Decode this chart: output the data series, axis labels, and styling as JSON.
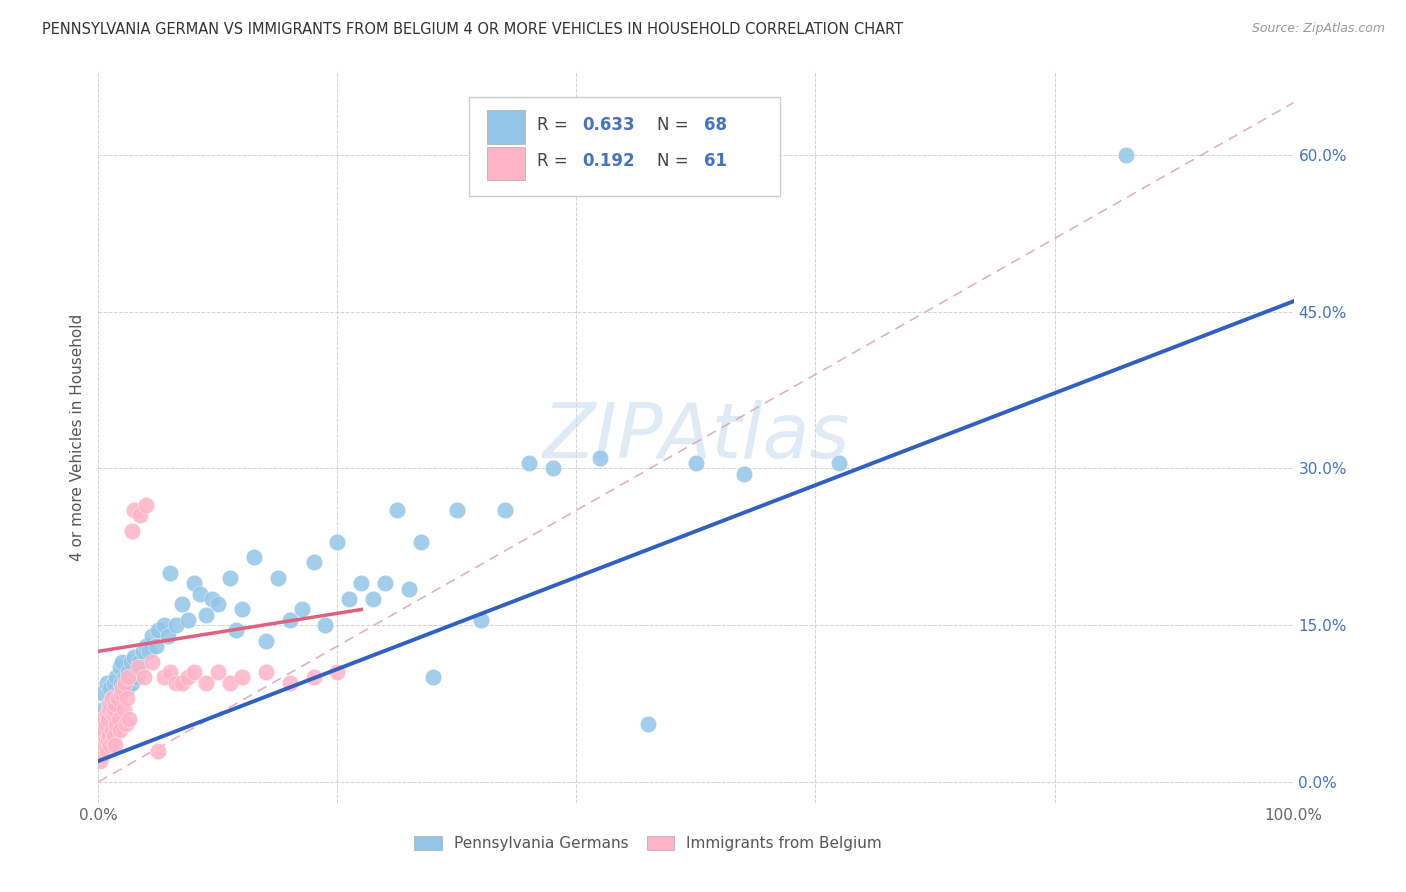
{
  "title": "PENNSYLVANIA GERMAN VS IMMIGRANTS FROM BELGIUM 4 OR MORE VEHICLES IN HOUSEHOLD CORRELATION CHART",
  "source": "Source: ZipAtlas.com",
  "ylabel": "4 or more Vehicles in Household",
  "xmin": 0.0,
  "xmax": 1.0,
  "ymin": -0.02,
  "ymax": 0.68,
  "x_ticks": [
    0.0,
    0.2,
    0.4,
    0.6,
    0.8,
    1.0
  ],
  "x_tick_labels": [
    "0.0%",
    "",
    "",
    "",
    "",
    "100.0%"
  ],
  "y_ticks": [
    0.0,
    0.15,
    0.3,
    0.45,
    0.6
  ],
  "y_tick_labels": [
    "0.0%",
    "15.0%",
    "30.0%",
    "45.0%",
    "60.0%"
  ],
  "R1": 0.633,
  "N1": 68,
  "R2": 0.192,
  "N2": 61,
  "color_blue": "#92C5E8",
  "color_pink": "#FFB3C6",
  "color_blue_line": "#3060C0",
  "color_pink_line": "#E06080",
  "color_diag": "#D0A0A8",
  "watermark_color": "#C8DCF0",
  "blue_points_x": [
    0.003,
    0.005,
    0.007,
    0.009,
    0.01,
    0.012,
    0.013,
    0.015,
    0.016,
    0.018,
    0.019,
    0.02,
    0.022,
    0.024,
    0.025,
    0.027,
    0.028,
    0.03,
    0.032,
    0.034,
    0.035,
    0.037,
    0.04,
    0.042,
    0.045,
    0.048,
    0.05,
    0.055,
    0.058,
    0.06,
    0.065,
    0.07,
    0.075,
    0.08,
    0.085,
    0.09,
    0.095,
    0.1,
    0.11,
    0.115,
    0.12,
    0.13,
    0.14,
    0.15,
    0.16,
    0.17,
    0.18,
    0.19,
    0.2,
    0.21,
    0.22,
    0.23,
    0.24,
    0.25,
    0.26,
    0.27,
    0.28,
    0.3,
    0.32,
    0.34,
    0.36,
    0.38,
    0.42,
    0.46,
    0.5,
    0.54,
    0.62,
    0.86
  ],
  "blue_points_y": [
    0.085,
    0.07,
    0.095,
    0.075,
    0.09,
    0.08,
    0.095,
    0.1,
    0.085,
    0.11,
    0.095,
    0.115,
    0.1,
    0.09,
    0.105,
    0.115,
    0.095,
    0.12,
    0.1,
    0.115,
    0.11,
    0.125,
    0.13,
    0.125,
    0.14,
    0.13,
    0.145,
    0.15,
    0.14,
    0.2,
    0.15,
    0.17,
    0.155,
    0.19,
    0.18,
    0.16,
    0.175,
    0.17,
    0.195,
    0.145,
    0.165,
    0.215,
    0.135,
    0.195,
    0.155,
    0.165,
    0.21,
    0.15,
    0.23,
    0.175,
    0.19,
    0.175,
    0.19,
    0.26,
    0.185,
    0.23,
    0.1,
    0.26,
    0.155,
    0.26,
    0.305,
    0.3,
    0.31,
    0.055,
    0.305,
    0.295,
    0.305,
    0.6
  ],
  "pink_points_x": [
    0.001,
    0.002,
    0.002,
    0.003,
    0.003,
    0.004,
    0.004,
    0.005,
    0.005,
    0.006,
    0.006,
    0.007,
    0.007,
    0.008,
    0.008,
    0.009,
    0.009,
    0.01,
    0.01,
    0.011,
    0.011,
    0.012,
    0.012,
    0.013,
    0.013,
    0.014,
    0.014,
    0.015,
    0.016,
    0.017,
    0.018,
    0.019,
    0.02,
    0.021,
    0.022,
    0.023,
    0.024,
    0.025,
    0.026,
    0.028,
    0.03,
    0.033,
    0.035,
    0.038,
    0.04,
    0.045,
    0.05,
    0.055,
    0.06,
    0.065,
    0.07,
    0.075,
    0.08,
    0.09,
    0.1,
    0.11,
    0.12,
    0.14,
    0.16,
    0.18,
    0.2
  ],
  "pink_points_y": [
    0.02,
    0.035,
    0.045,
    0.025,
    0.055,
    0.03,
    0.06,
    0.035,
    0.05,
    0.04,
    0.055,
    0.03,
    0.065,
    0.04,
    0.06,
    0.045,
    0.07,
    0.035,
    0.075,
    0.05,
    0.08,
    0.04,
    0.065,
    0.045,
    0.07,
    0.035,
    0.075,
    0.055,
    0.08,
    0.06,
    0.05,
    0.085,
    0.09,
    0.07,
    0.095,
    0.055,
    0.08,
    0.1,
    0.06,
    0.24,
    0.26,
    0.11,
    0.255,
    0.1,
    0.265,
    0.115,
    0.03,
    0.1,
    0.105,
    0.095,
    0.095,
    0.1,
    0.105,
    0.095,
    0.105,
    0.095,
    0.1,
    0.105,
    0.095,
    0.1,
    0.105
  ]
}
